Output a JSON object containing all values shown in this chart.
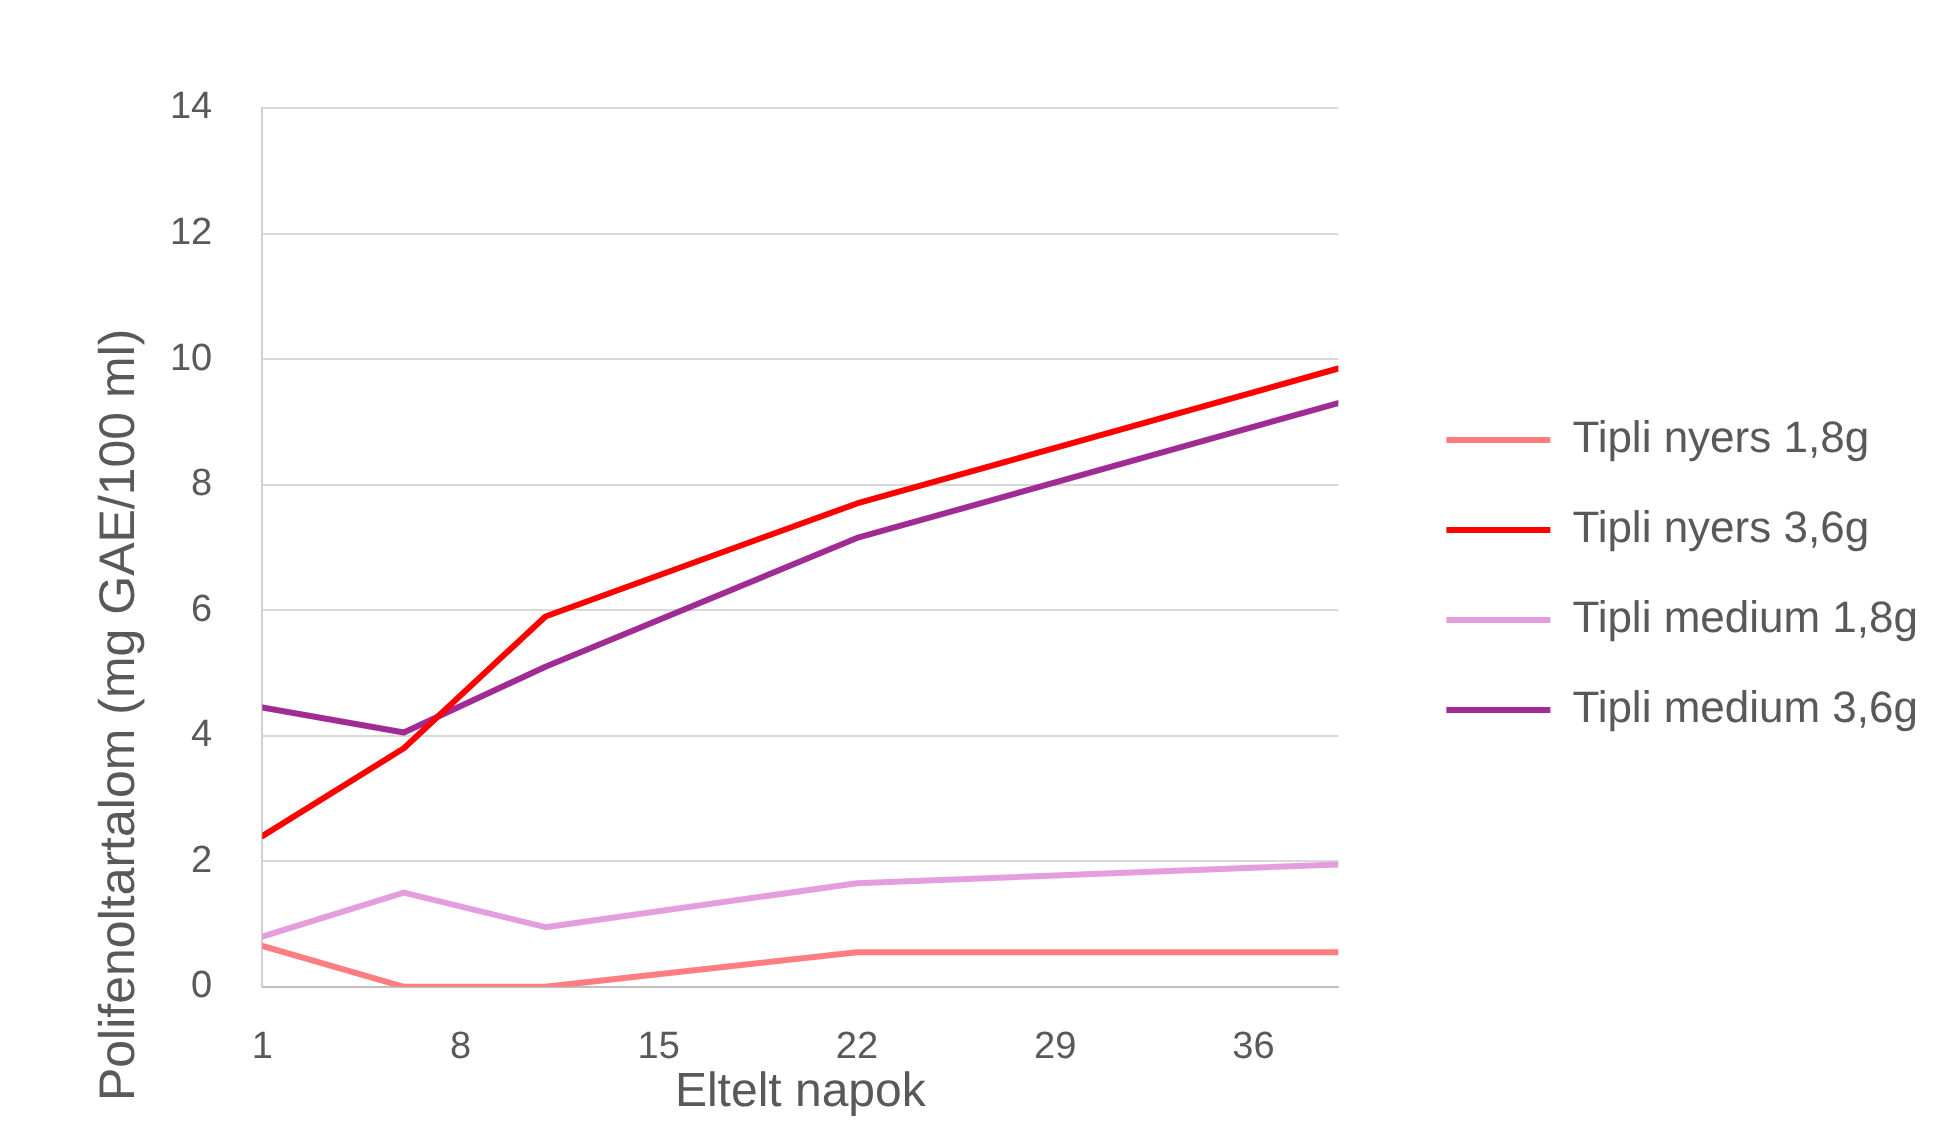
{
  "chart_data": {
    "type": "line",
    "xlabel": "Eltelt napok",
    "ylabel": "Polifenoltartalom (mg GAE/100 ml)",
    "x": [
      1,
      6,
      11,
      22,
      39
    ],
    "xlim": [
      1,
      39
    ],
    "xticks": [
      1,
      8,
      15,
      22,
      29,
      36
    ],
    "ylim": [
      0,
      14
    ],
    "yticks": [
      0,
      2,
      4,
      6,
      8,
      10,
      12,
      14
    ],
    "grid": "y",
    "legend": "right",
    "line_style": "solid",
    "series": [
      {
        "name": "Tipli nyers 1,8g",
        "color": "#ff7c80",
        "values": [
          0.65,
          0,
          0,
          0.55,
          0.55
        ]
      },
      {
        "name": "Tipli nyers 3,6g",
        "color": "#ff0000",
        "values": [
          2.4,
          3.8,
          5.9,
          7.7,
          9.85
        ]
      },
      {
        "name": "Tipli medium 1,8g",
        "color": "#e59edd",
        "values": [
          0.8,
          1.5,
          0.95,
          1.65,
          1.95
        ]
      },
      {
        "name": "Tipli medium 3,6g",
        "color": "#a02b93",
        "values": [
          4.45,
          4.05,
          5.1,
          7.15,
          9.3
        ]
      }
    ]
  }
}
